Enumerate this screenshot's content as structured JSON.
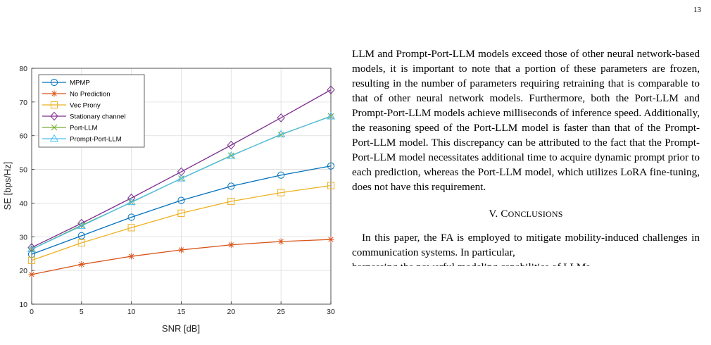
{
  "page_number": "13",
  "figure": {
    "chart_data": {
      "type": "line",
      "xlabel": "SNR [dB]",
      "ylabel": "SE [bps/Hz]",
      "x": [
        0,
        5,
        10,
        15,
        20,
        25,
        30
      ],
      "xlim": [
        0,
        30
      ],
      "ylim": [
        10,
        80
      ],
      "xticks": [
        "0",
        "5",
        "10",
        "15",
        "20",
        "25",
        "30"
      ],
      "yticks": [
        "10",
        "20",
        "30",
        "40",
        "50",
        "60",
        "70",
        "80"
      ],
      "grid": true,
      "legend_position": "top-left",
      "series": [
        {
          "name": "MPMP",
          "color": "#0072bd",
          "marker": "circle",
          "values": [
            24.8,
            30.3,
            35.8,
            40.8,
            45.0,
            48.3,
            51.0
          ]
        },
        {
          "name": "No Prediction",
          "color": "#d95319",
          "marker": "star",
          "values": [
            18.8,
            21.8,
            24.2,
            26.1,
            27.6,
            28.6,
            29.2
          ]
        },
        {
          "name": "Vec Prony",
          "color": "#edb120",
          "marker": "square",
          "values": [
            23.0,
            28.2,
            32.7,
            37.0,
            40.5,
            43.1,
            45.2
          ]
        },
        {
          "name": "Stationary channel",
          "color": "#7e2f8e",
          "marker": "diamond",
          "values": [
            26.8,
            34.0,
            41.5,
            49.3,
            57.2,
            65.3,
            73.6
          ]
        },
        {
          "name": "Port-LLM",
          "color": "#77ac30",
          "marker": "x",
          "values": [
            26.3,
            33.4,
            40.2,
            47.3,
            54.1,
            60.3,
            65.8
          ]
        },
        {
          "name": "Prompt-Port-LLM",
          "color": "#4dbeee",
          "marker": "triangle",
          "values": [
            26.3,
            33.2,
            40.3,
            47.3,
            54.0,
            60.4,
            65.7
          ]
        }
      ]
    }
  },
  "body_text": {
    "paragraph_1": "LLM and Prompt-Port-LLM models exceed those of other neural network-based models, it is important to note that a portion of these parameters are frozen, resulting in the number of parameters requiring retraining that is comparable to that of other neural network models. Furthermore, both the Port-LLM and Prompt-Port-LLM models achieve milliseconds of inference speed. Additionally, the reasoning speed of the Port-LLM model is faster than that of the Prompt-Port-LLM model. This discrepancy can be attributed to the fact that the Prompt-Port-LLM model necessitates additional time to acquire dynamic prompt prior to each prediction, whereas the Port-LLM model, which utilizes LoRA fine-tuning, does not have this requirement.",
    "section_number": "V.",
    "section_title_initial": "C",
    "section_title_rest": "ONCLUSIONS",
    "paragraph_2": "In this paper, the FA is employed to mitigate mobility-induced challenges in communication systems. In particular,",
    "paragraph_2_cut": "harnessing the powerful modeling capabilities of LLMs"
  }
}
